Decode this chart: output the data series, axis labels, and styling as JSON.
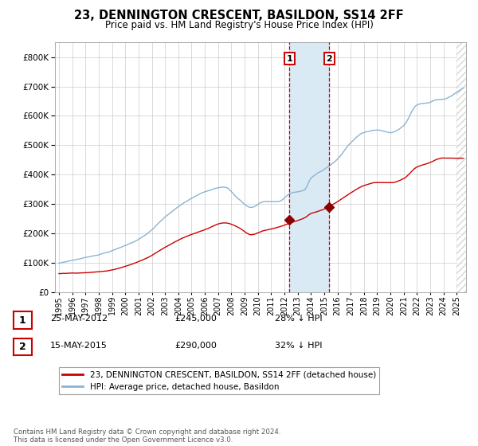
{
  "title": "23, DENNINGTON CRESCENT, BASILDON, SS14 2FF",
  "subtitle": "Price paid vs. HM Land Registry's House Price Index (HPI)",
  "legend_line1": "23, DENNINGTON CRESCENT, BASILDON, SS14 2FF (detached house)",
  "legend_line2": "HPI: Average price, detached house, Basildon",
  "sale1_label": "1",
  "sale1_date": "25-MAY-2012",
  "sale1_price": "£245,000",
  "sale1_hpi": "28% ↓ HPI",
  "sale1_year": 2012.38,
  "sale1_value": 245000,
  "sale2_label": "2",
  "sale2_date": "15-MAY-2015",
  "sale2_price": "£290,000",
  "sale2_hpi": "32% ↓ HPI",
  "sale2_year": 2015.38,
  "sale2_value": 290000,
  "hpi_color": "#8ab4d4",
  "price_color": "#cc0000",
  "dot_color": "#8b0000",
  "background_color": "#ffffff",
  "grid_color": "#cccccc",
  "shade_color": "#daeaf5",
  "vline_color": "#cc0000",
  "hatch_color": "#bbbbbb",
  "footer": "Contains HM Land Registry data © Crown copyright and database right 2024.\nThis data is licensed under the Open Government Licence v3.0.",
  "ylim": [
    0,
    850000
  ],
  "yticks": [
    0,
    100000,
    200000,
    300000,
    400000,
    500000,
    600000,
    700000,
    800000
  ],
  "xlim_start": 1994.7,
  "xlim_end": 2025.7,
  "xtick_years": [
    1995,
    1996,
    1997,
    1998,
    1999,
    2000,
    2001,
    2002,
    2003,
    2004,
    2005,
    2006,
    2007,
    2008,
    2009,
    2010,
    2011,
    2012,
    2013,
    2014,
    2015,
    2016,
    2017,
    2018,
    2019,
    2020,
    2021,
    2022,
    2023,
    2024,
    2025
  ]
}
